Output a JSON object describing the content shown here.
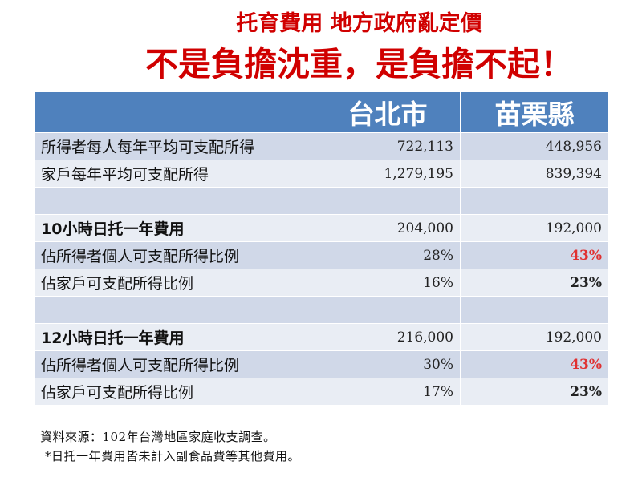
{
  "title": {
    "line1": "托育費用  地方政府亂定價",
    "line2": "不是負擔沈重，是負擔不起！"
  },
  "table": {
    "header": {
      "col1": "",
      "col2": "台北市",
      "col3": "苗栗縣"
    },
    "rows": [
      {
        "label": "所得者每人每年平均可支配所得",
        "taipei": "722,113",
        "miaoli": "448,956"
      },
      {
        "label": "家戶每年平均可支配所得",
        "taipei": "1,279,195",
        "miaoli": "839,394"
      },
      {
        "label": "",
        "taipei": "",
        "miaoli": ""
      },
      {
        "label": "10小時日托一年費用",
        "taipei": "204,000",
        "miaoli": "192,000"
      },
      {
        "label": "佔所得者個人可支配所得比例",
        "taipei": "28%",
        "miaoli": "43%"
      },
      {
        "label": "佔家戶可支配所得比例",
        "taipei": "16%",
        "miaoli": "23%"
      },
      {
        "label": "",
        "taipei": "",
        "miaoli": ""
      },
      {
        "label": "12小時日托一年費用",
        "taipei": "216,000",
        "miaoli": "192,000"
      },
      {
        "label": "佔所得者個人可支配所得比例",
        "taipei": "30%",
        "miaoli": "43%"
      },
      {
        "label": "佔家戶可支配所得比例",
        "taipei": "17%",
        "miaoli": "23%"
      }
    ]
  },
  "footnotes": {
    "source": "資料來源：102年台灣地區家庭收支調查。",
    "note": "*日托一年費用皆未計入副食品費等其他費用。"
  },
  "colors": {
    "title": "#d00000",
    "header_bg": "#4f81bd",
    "row_odd": "#d0d8e8",
    "row_even": "#e9edf4",
    "highlight_red": "#e03030"
  }
}
